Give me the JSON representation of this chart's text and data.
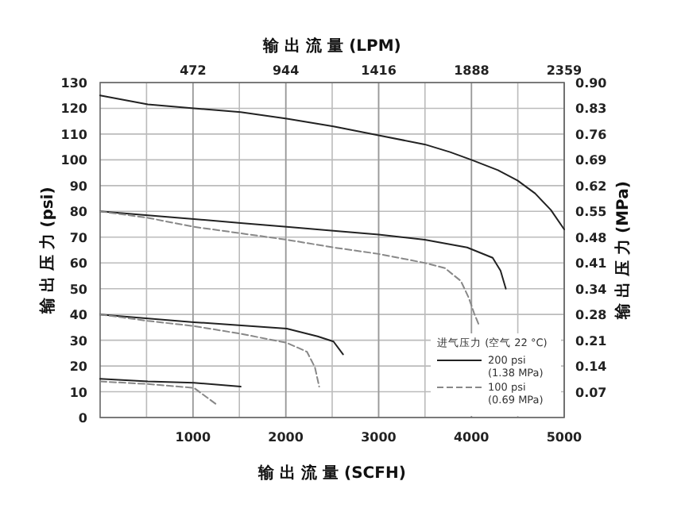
{
  "chart_data": {
    "type": "line",
    "xlabel": "输 出 流 量 (SCFH)",
    "x2label": "输 出 流 量 (LPM)",
    "ylabel": "输 出 压 力 (psi)",
    "y2label": "输 出 压 力 (MPa)",
    "legend_title": "进气压力 (空气 22 °C)",
    "legend": "bottom right",
    "grid": true,
    "marker": "none",
    "xlim": [
      0,
      5000
    ],
    "xticks": [
      {
        "value": 500,
        "label": null
      },
      1000,
      {
        "value": 1500,
        "label": null
      },
      2000,
      {
        "value": 2500,
        "label": null
      },
      3000,
      {
        "value": 3500,
        "label": null
      },
      4000,
      {
        "value": 4500,
        "label": null
      },
      5000
    ],
    "x2lim": [
      0,
      2359
    ],
    "x2ticks": [
      472,
      944,
      1416,
      1888,
      2359
    ],
    "ylim": [
      0,
      130
    ],
    "yticks": [
      0,
      10,
      20,
      30,
      40,
      50,
      60,
      70,
      80,
      90,
      100,
      110,
      120,
      130
    ],
    "y2lim": [
      0,
      0.896
    ],
    "y2ticks": [
      {
        "value": 0.0689,
        "label": "0.07"
      },
      {
        "value": 0.1379,
        "label": "0.14"
      },
      {
        "value": 0.2068,
        "label": "0.21"
      },
      {
        "value": 0.2758,
        "label": "0.28"
      },
      {
        "value": 0.3447,
        "label": "0.34"
      },
      {
        "value": 0.4137,
        "label": "0.41"
      },
      {
        "value": 0.4826,
        "label": "0.48"
      },
      {
        "value": 0.5516,
        "label": "0.55"
      },
      {
        "value": 0.6205,
        "label": "0.62"
      },
      {
        "value": 0.6895,
        "label": "0.69"
      },
      {
        "value": 0.7584,
        "label": "0.76"
      },
      {
        "value": 0.8274,
        "label": "0.83"
      },
      {
        "value": 0.896,
        "label": "0.90"
      }
    ],
    "series": [
      {
        "name": "200 psi (1.38 MPa)",
        "color": "#222222",
        "line_style": "solid",
        "x": [
          0,
          514,
          1011,
          1514,
          2011,
          2514,
          3000,
          3497,
          3771,
          4000,
          4286,
          4497,
          4686,
          4857,
          5000
        ],
        "values": [
          125,
          121.5,
          120,
          118.5,
          116,
          113,
          109.5,
          106,
          103,
          100,
          96,
          92,
          87,
          80.5,
          73
        ]
      },
      {
        "color": "#222222",
        "line_style": "solid",
        "x": [
          0,
          514,
          1011,
          1514,
          2011,
          2514,
          3000,
          3497,
          3954,
          4229,
          4314,
          4371
        ],
        "values": [
          80,
          78.5,
          77,
          75.5,
          74,
          72.5,
          71,
          69,
          66,
          62,
          57,
          50
        ]
      },
      {
        "name": "100 psi (0.69 MPa)",
        "color": "#888888",
        "line_style": "dashed",
        "x": [
          0,
          514,
          1011,
          1514,
          2011,
          2514,
          3000,
          3497,
          3714,
          3886,
          3971,
          4029,
          4086
        ],
        "values": [
          80,
          77.5,
          74,
          71.5,
          69,
          66,
          63.5,
          60,
          58,
          53,
          46.5,
          40.5,
          35.5
        ]
      },
      {
        "color": "#222222",
        "line_style": "solid",
        "x": [
          0,
          1011,
          2011,
          2343,
          2514,
          2617
        ],
        "values": [
          40,
          37,
          34.5,
          31.5,
          29.5,
          24.5
        ]
      },
      {
        "color": "#888888",
        "line_style": "dashed",
        "x": [
          0,
          514,
          1011,
          1514,
          2011,
          2229,
          2314,
          2360
        ],
        "values": [
          40,
          37.5,
          35.5,
          32.5,
          29,
          25.5,
          19.5,
          12
        ]
      },
      {
        "color": "#222222",
        "line_style": "solid",
        "x": [
          0,
          514,
          1011,
          1514
        ],
        "values": [
          15,
          14,
          13.5,
          12
        ]
      },
      {
        "color": "#888888",
        "line_style": "dashed",
        "x": [
          0,
          514,
          1011,
          1257
        ],
        "values": [
          14,
          13,
          11.5,
          5
        ]
      }
    ]
  }
}
